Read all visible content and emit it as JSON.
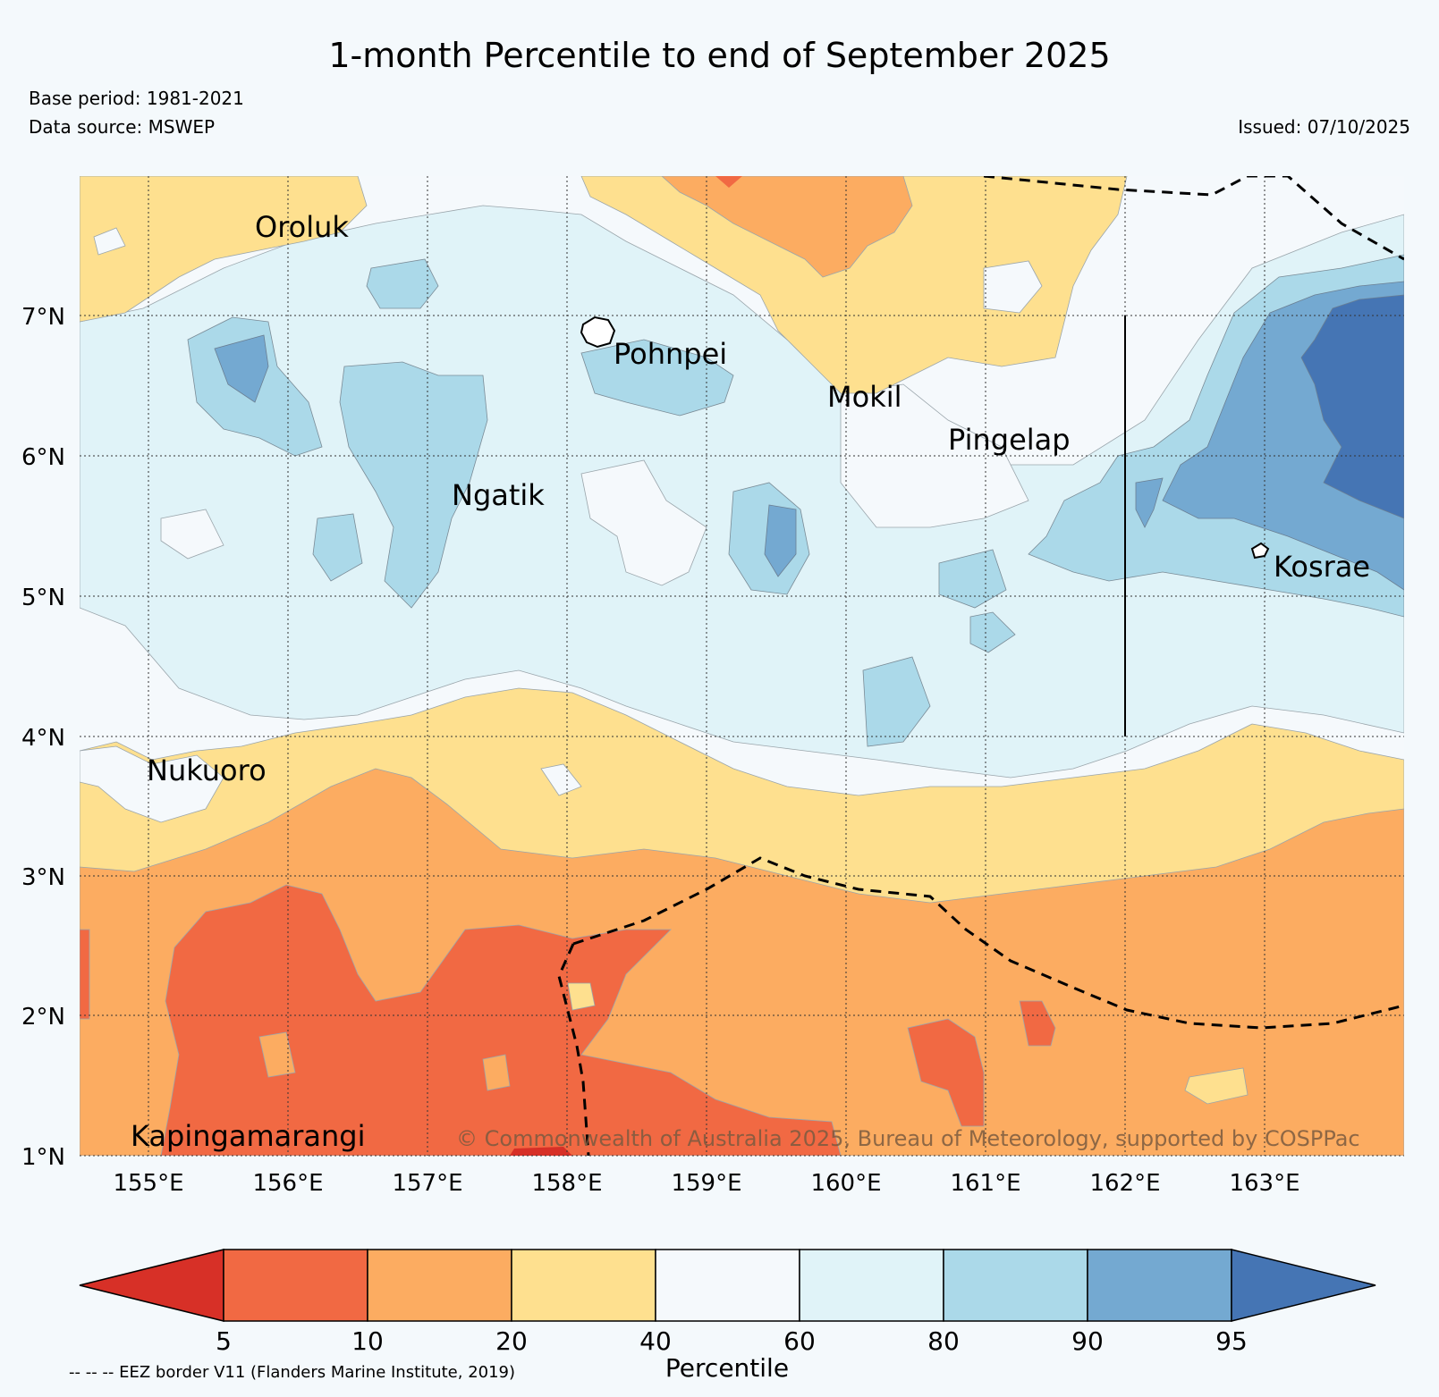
{
  "header": {
    "title": "1-month Percentile to end of September 2025",
    "base_period": "Base period: 1981-2021",
    "data_source": "Data source: MSWEP",
    "issued": "Issued: 07/10/2025"
  },
  "map": {
    "lat_labels": [
      "7°N",
      "6°N",
      "5°N",
      "4°N",
      "3°N",
      "2°N",
      "1°N"
    ],
    "lon_labels": [
      "155°E",
      "156°E",
      "157°E",
      "158°E",
      "159°E",
      "160°E",
      "161°E",
      "162°E",
      "163°E"
    ],
    "places": [
      "Oroluk",
      "Pohnpei",
      "Mokil",
      "Pingelap",
      "Ngatik",
      "Kosrae",
      "Nukuoro",
      "Kapingamarangi"
    ],
    "copyright": "© Commonwealth of Australia 2025, Bureau of Meteorology, supported by COSPPac"
  },
  "colorbar": {
    "title": "Percentile",
    "ticks": [
      "5",
      "10",
      "20",
      "40",
      "60",
      "80",
      "90",
      "95"
    ],
    "colors": {
      "below_5": "#d73027",
      "5_10": "#f16943",
      "10_20": "#fcac61",
      "20_40": "#fee08f",
      "40_60": "#f5f9fc",
      "60_80": "#e0f3f8",
      "80_90": "#abd9e9",
      "90_95": "#74a9d1",
      "above_95": "#4575b4"
    }
  },
  "legend": {
    "eez_note": "-- -- -- EEZ border V11 (Flanders Marine Institute, 2019)"
  }
}
